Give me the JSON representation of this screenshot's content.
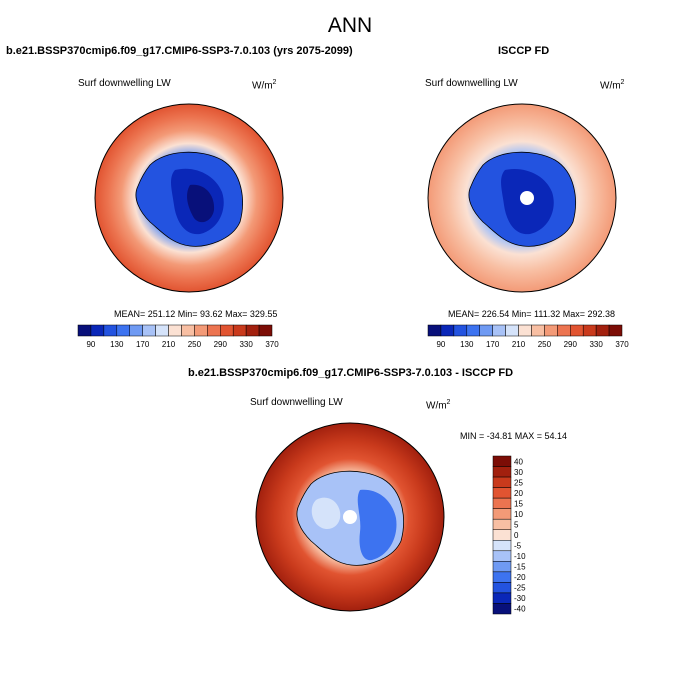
{
  "title": "ANN",
  "colors": {
    "abs_palette": [
      "#08107a",
      "#0a27b8",
      "#2353e0",
      "#3d73f0",
      "#6f9af3",
      "#a8c2f7",
      "#d5e3fa",
      "#fbe1d3",
      "#f8bfa3",
      "#f39a77",
      "#ec7450",
      "#e15431",
      "#c93a1c",
      "#a2200e",
      "#7c0d06"
    ],
    "diff_palette": [
      "#08107a",
      "#0a27b8",
      "#2353e0",
      "#3d73f0",
      "#6f9af3",
      "#a8c2f7",
      "#d5e3fa",
      "#fbe1d3",
      "#f8bfa3",
      "#f39a77",
      "#ec7450",
      "#e15431",
      "#c93a1c",
      "#a2200e",
      "#7c0d06"
    ]
  },
  "panels": [
    {
      "title": "b.e21.BSSP370cmip6.f09_g17.CMIP6-SSP3-7.0.103 (yrs 2075-2099)",
      "variable": "Surf downwelling LW",
      "units_base": "W/m",
      "units_exp": "2",
      "stats": "MEAN= 251.12  Min=  93.62  Max= 329.55"
    },
    {
      "title": "ISCCP FD",
      "variable": "Surf downwelling LW",
      "units_base": "W/m",
      "units_exp": "2",
      "stats": "MEAN= 226.54  Min= 111.32  Max= 292.38"
    },
    {
      "title": "b.e21.BSSP370cmip6.f09_g17.CMIP6-SSP3-7.0.103 - ISCCP FD",
      "variable": "Surf downwelling LW",
      "units_base": "W/m",
      "units_exp": "2",
      "stats": "MIN = -34.81 MAX =  54.14"
    }
  ],
  "chart_data": [
    {
      "type": "heatmap",
      "projection": "south-polar-stereographic",
      "title": "b.e21.BSSP370cmip6.f09_g17.CMIP6-SSP3-7.0.103 (yrs 2075-2099)",
      "variable": "Surf downwelling LW",
      "units": "W/m2",
      "mean": 251.12,
      "min": 93.62,
      "max": 329.55,
      "colorbar_ticks": [
        "90",
        "130",
        "170",
        "210",
        "250",
        "290",
        "330",
        "370"
      ],
      "colorbar_orientation": "horizontal"
    },
    {
      "type": "heatmap",
      "projection": "south-polar-stereographic",
      "title": "ISCCP FD",
      "variable": "Surf downwelling LW",
      "units": "W/m2",
      "mean": 226.54,
      "min": 111.32,
      "max": 292.38,
      "colorbar_ticks": [
        "90",
        "130",
        "170",
        "210",
        "250",
        "290",
        "330",
        "370"
      ],
      "colorbar_orientation": "horizontal"
    },
    {
      "type": "heatmap",
      "projection": "south-polar-stereographic",
      "title": "b.e21.BSSP370cmip6.f09_g17.CMIP6-SSP3-7.0.103 - ISCCP FD",
      "variable": "Surf downwelling LW",
      "units": "W/m2",
      "min": -34.81,
      "max": 54.14,
      "colorbar_ticks": [
        "40",
        "30",
        "25",
        "20",
        "15",
        "10",
        "5",
        "0",
        "-5",
        "-10",
        "-15",
        "-20",
        "-25",
        "-30",
        "-40"
      ],
      "colorbar_orientation": "vertical"
    }
  ]
}
